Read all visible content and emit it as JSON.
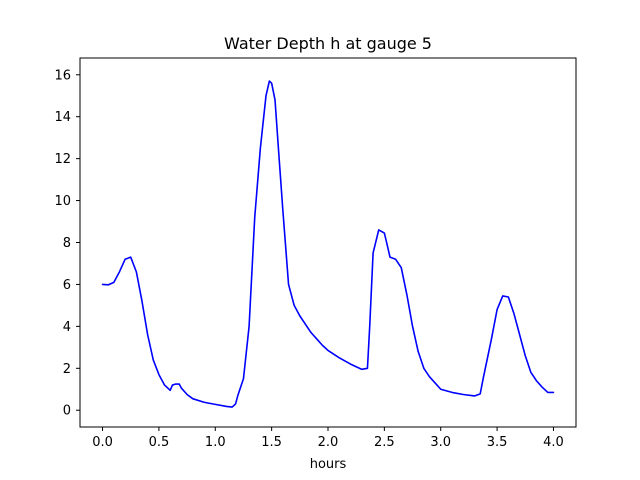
{
  "chart_data": {
    "type": "line",
    "title": "Water Depth h at gauge 5",
    "xlabel": "hours",
    "ylabel": "",
    "xlim": [
      -0.2,
      4.2
    ],
    "ylim": [
      -0.8,
      16.8
    ],
    "xticks": [
      0.0,
      0.5,
      1.0,
      1.5,
      2.0,
      2.5,
      3.0,
      3.5,
      4.0
    ],
    "xtick_labels": [
      "0.0",
      "0.5",
      "1.0",
      "1.5",
      "2.0",
      "2.5",
      "3.0",
      "3.5",
      "4.0"
    ],
    "yticks": [
      0,
      2,
      4,
      6,
      8,
      10,
      12,
      14,
      16
    ],
    "ytick_labels": [
      "0",
      "2",
      "4",
      "6",
      "8",
      "10",
      "12",
      "14",
      "16"
    ],
    "grid": false,
    "series": [
      {
        "color": "#0000ff",
        "x": [
          0.0,
          0.05,
          0.1,
          0.15,
          0.2,
          0.25,
          0.3,
          0.35,
          0.4,
          0.45,
          0.5,
          0.55,
          0.6,
          0.62,
          0.65,
          0.68,
          0.7,
          0.75,
          0.8,
          0.9,
          1.0,
          1.1,
          1.15,
          1.18,
          1.2,
          1.25,
          1.3,
          1.35,
          1.4,
          1.45,
          1.48,
          1.5,
          1.53,
          1.56,
          1.6,
          1.65,
          1.7,
          1.75,
          1.8,
          1.85,
          1.9,
          1.95,
          2.0,
          2.1,
          2.2,
          2.3,
          2.35,
          2.37,
          2.4,
          2.45,
          2.5,
          2.52,
          2.55,
          2.6,
          2.65,
          2.7,
          2.75,
          2.8,
          2.85,
          2.9,
          2.95,
          3.0,
          3.1,
          3.2,
          3.3,
          3.35,
          3.38,
          3.45,
          3.5,
          3.55,
          3.6,
          3.65,
          3.7,
          3.75,
          3.8,
          3.85,
          3.9,
          3.95,
          4.0
        ],
        "y": [
          6.0,
          5.98,
          6.1,
          6.6,
          7.2,
          7.3,
          6.6,
          5.2,
          3.6,
          2.4,
          1.7,
          1.2,
          0.95,
          1.2,
          1.25,
          1.25,
          1.05,
          0.75,
          0.55,
          0.38,
          0.28,
          0.18,
          0.15,
          0.3,
          0.7,
          1.5,
          4.0,
          9.2,
          12.5,
          15.0,
          15.7,
          15.6,
          14.8,
          12.5,
          9.5,
          6.0,
          5.0,
          4.5,
          4.1,
          3.7,
          3.4,
          3.1,
          2.85,
          2.5,
          2.2,
          1.95,
          2.0,
          4.0,
          7.5,
          8.6,
          8.45,
          8.0,
          7.3,
          7.2,
          6.8,
          5.5,
          4.0,
          2.8,
          2.0,
          1.6,
          1.3,
          1.0,
          0.85,
          0.75,
          0.68,
          0.78,
          1.6,
          3.4,
          4.8,
          5.45,
          5.4,
          4.6,
          3.6,
          2.6,
          1.8,
          1.4,
          1.1,
          0.85,
          0.85
        ]
      }
    ]
  }
}
